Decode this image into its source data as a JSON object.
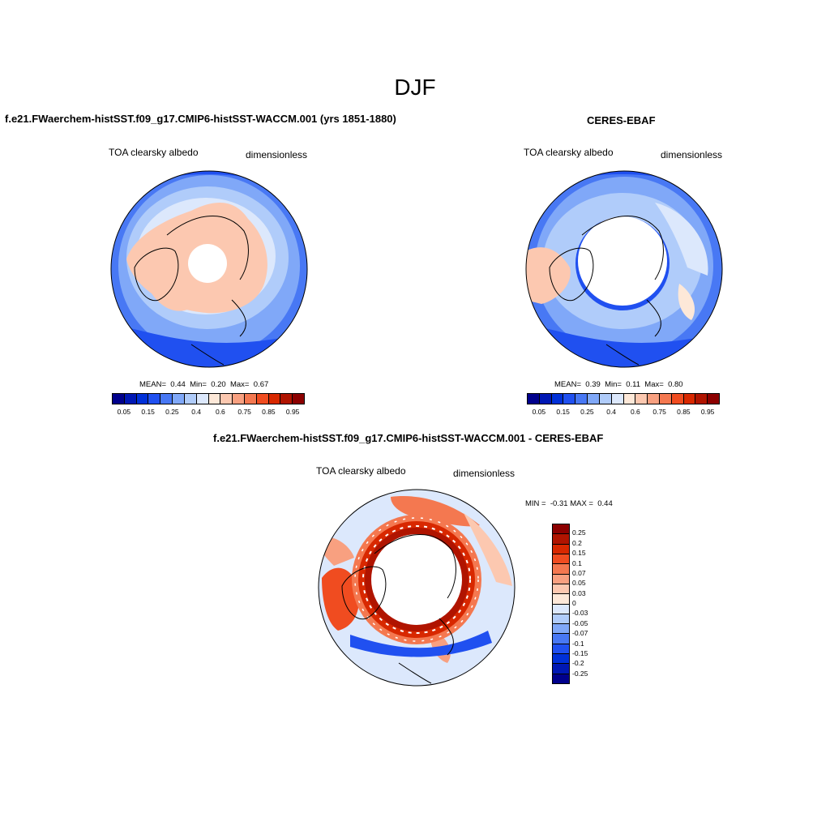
{
  "title": "DJF",
  "panels": {
    "model": {
      "title": "f.e21.FWaerchem-histSST.f09_g17.CMIP6-histSST-WACCM.001 (yrs 1851-1880)",
      "variable": "TOA clearsky albedo",
      "units": "dimensionless",
      "stats": {
        "mean_label": "MEAN=",
        "mean": "0.44",
        "min_label": "Min=",
        "min": "0.20",
        "max_label": "Max=",
        "max": "0.67"
      }
    },
    "obs": {
      "title": "CERES-EBAF",
      "variable": "TOA clearsky albedo",
      "units": "dimensionless",
      "stats": {
        "mean_label": "MEAN=",
        "mean": "0.39",
        "min_label": "Min=",
        "min": "0.11",
        "max_label": "Max=",
        "max": "0.80"
      }
    },
    "diff": {
      "title": "f.e21.FWaerchem-histSST.f09_g17.CMIP6-histSST-WACCM.001 - CERES-EBAF",
      "variable": "TOA clearsky albedo",
      "units": "dimensionless",
      "stats": {
        "min_label": "MIN =",
        "min": "-0.31",
        "max_label": "MAX =",
        "max": "0.44"
      }
    }
  },
  "colorbar_abs": {
    "colors": [
      "#00008c",
      "#0018b4",
      "#0030d8",
      "#2050f0",
      "#4878f4",
      "#80a8f8",
      "#b0ccfa",
      "#dce8fc",
      "#fde8d8",
      "#fcc8b0",
      "#f8a080",
      "#f47850",
      "#f04c20",
      "#d82800",
      "#b01400",
      "#8c0000"
    ],
    "ticks": [
      "0.05",
      "0.15",
      "0.25",
      "0.4",
      "0.6",
      "0.75",
      "0.85",
      "0.95"
    ]
  },
  "colorbar_diff": {
    "colors": [
      "#8c0000",
      "#b01400",
      "#d82800",
      "#f04c20",
      "#f47850",
      "#f8a080",
      "#fcc8b0",
      "#fde8d8",
      "#dce8fc",
      "#b0ccfa",
      "#80a8f8",
      "#4878f4",
      "#2050f0",
      "#0030d8",
      "#0018b4",
      "#00008c"
    ],
    "ticks": [
      "0.25",
      "0.2",
      "0.15",
      "0.1",
      "0.07",
      "0.05",
      "0.03",
      "0",
      "-0.03",
      "-0.05",
      "-0.07",
      "-0.1",
      "-0.15",
      "-0.2",
      "-0.25"
    ]
  }
}
